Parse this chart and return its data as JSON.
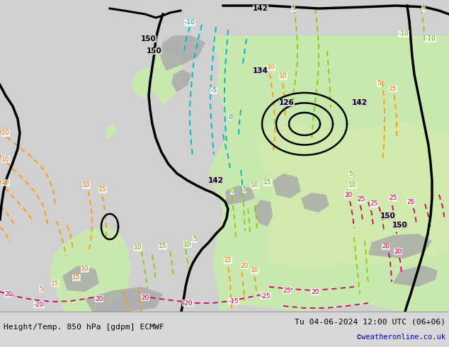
{
  "title_left": "Height/Temp. 850 hPa [gdpm] ECMWF",
  "title_right": "Tu 04-06-2024 12:00 UTC (06+06)",
  "credit": "©weatheronline.co.uk",
  "bg_ocean": "#d0d0d0",
  "bg_land": "#c8e8b0",
  "bg_mountain": "#a8a8a8",
  "bg_land2": "#e0f0c0",
  "bottom_bar_color": "#d8d8d8",
  "figsize": [
    6.34,
    4.9
  ],
  "dpi": 100
}
